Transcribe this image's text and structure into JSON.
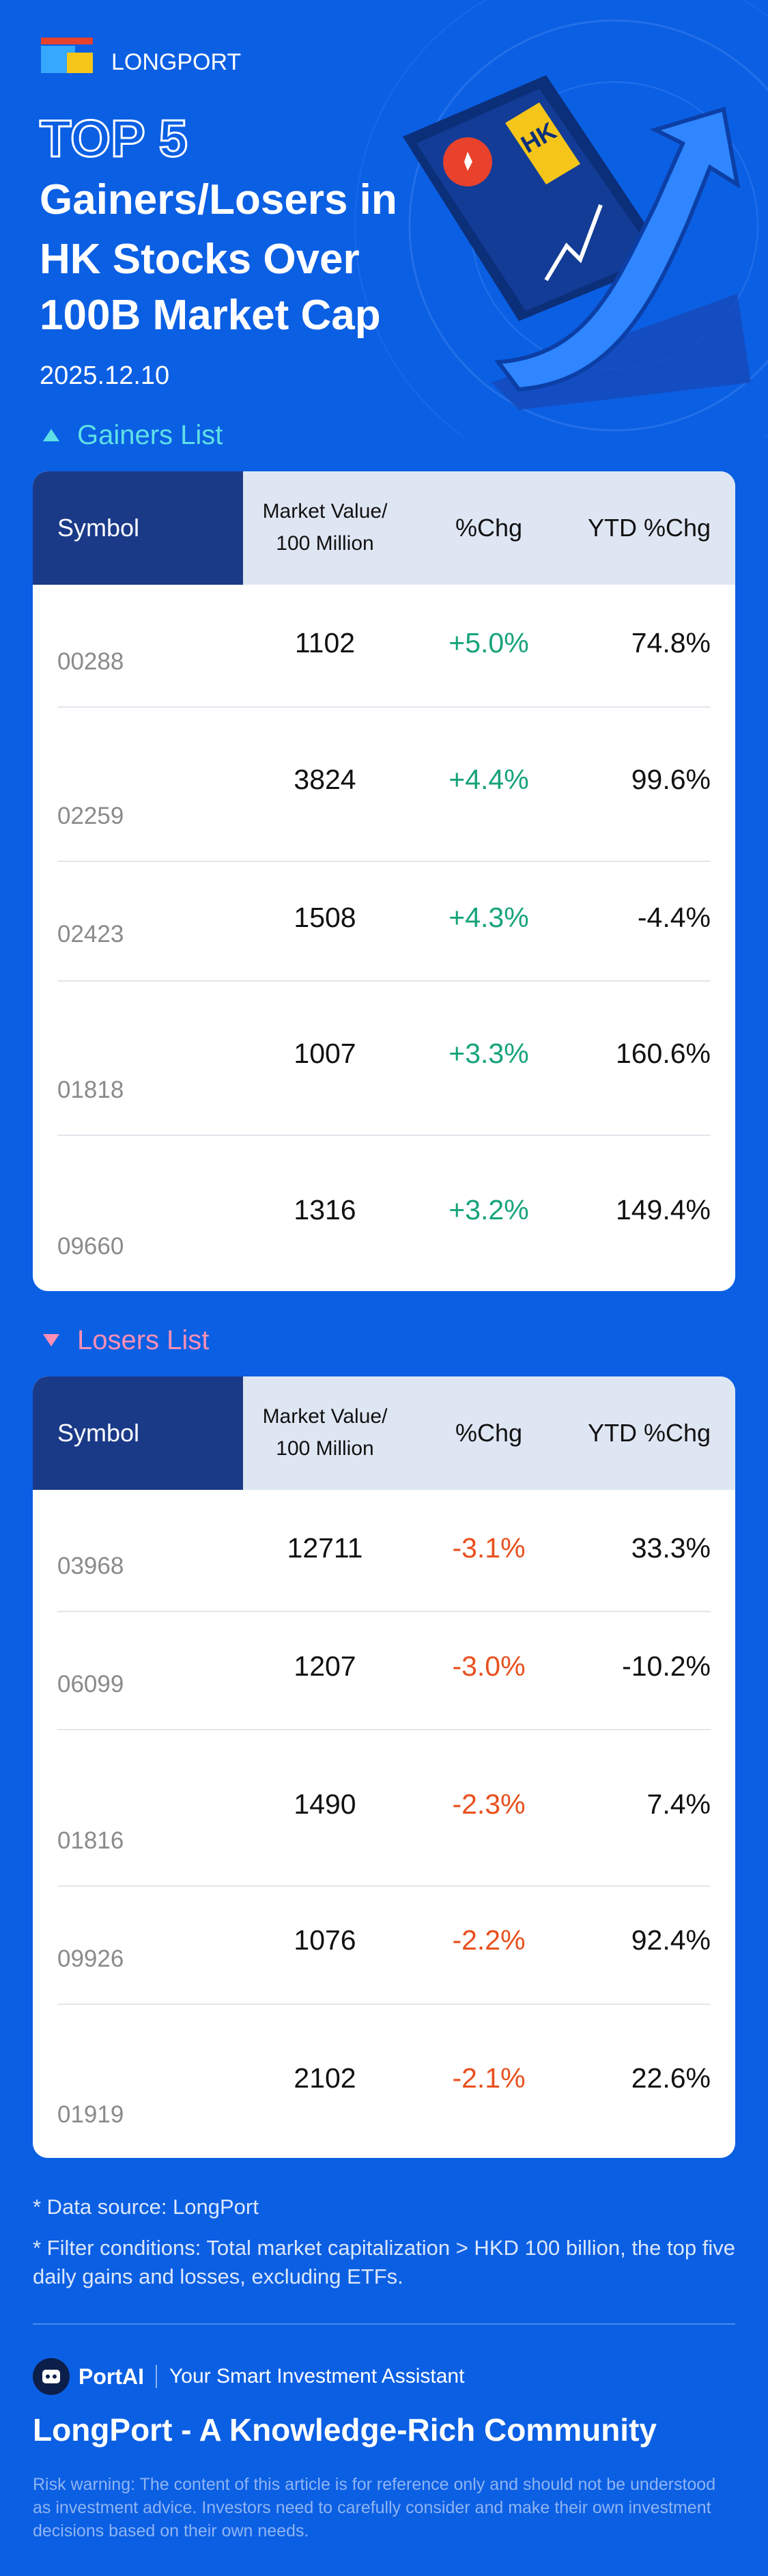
{
  "header": {
    "brand": "LONGPORT",
    "top": "TOP 5",
    "title_lines": [
      "Gainers/Losers in",
      "HK Stocks Over",
      "100B Market Cap"
    ],
    "date": "2025.12.10",
    "illustration_tag": "HK"
  },
  "gainers": {
    "title": "Gainers List",
    "columns": [
      "Symbol",
      "Market Value/\n100 Million",
      "%Chg",
      "YTD %Chg"
    ],
    "rows": [
      {
        "symbol": "00288",
        "market_value": "1102",
        "chg": "+5.0%",
        "ytd": "74.8%"
      },
      {
        "symbol": "02259",
        "market_value": "3824",
        "chg": "+4.4%",
        "ytd": "99.6%"
      },
      {
        "symbol": "02423",
        "market_value": "1508",
        "chg": "+4.3%",
        "ytd": "-4.4%"
      },
      {
        "symbol": "01818",
        "market_value": "1007",
        "chg": "+3.3%",
        "ytd": "160.6%"
      },
      {
        "symbol": "09660",
        "market_value": "1316",
        "chg": "+3.2%",
        "ytd": "149.4%"
      }
    ]
  },
  "losers": {
    "title": "Losers List",
    "columns": [
      "Symbol",
      "Market Value/\n100 Million",
      "%Chg",
      "YTD %Chg"
    ],
    "rows": [
      {
        "symbol": "03968",
        "market_value": "12711",
        "chg": "-3.1%",
        "ytd": "33.3%"
      },
      {
        "symbol": "06099",
        "market_value": "1207",
        "chg": "-3.0%",
        "ytd": "-10.2%"
      },
      {
        "symbol": "01816",
        "market_value": "1490",
        "chg": "-2.3%",
        "ytd": "7.4%"
      },
      {
        "symbol": "09926",
        "market_value": "1076",
        "chg": "-2.2%",
        "ytd": "92.4%"
      },
      {
        "symbol": "01919",
        "market_value": "2102",
        "chg": "-2.1%",
        "ytd": "22.6%"
      }
    ]
  },
  "footnotes": [
    "* Data source: LongPort",
    "* Filter conditions: Total market capitalization > HKD 100 billion, the top five daily gains and losses, excluding ETFs."
  ],
  "footer": {
    "assistant_name": "PortAI",
    "assistant_tagline": "Your Smart Investment Assistant",
    "slogan": "LongPort - A Knowledge-Rich Community",
    "risk_warning": "Risk warning: The content of this article is for reference only and should not be understood as investment advice. Investors need to carefully consider and make their own investment decisions based on their own needs."
  }
}
